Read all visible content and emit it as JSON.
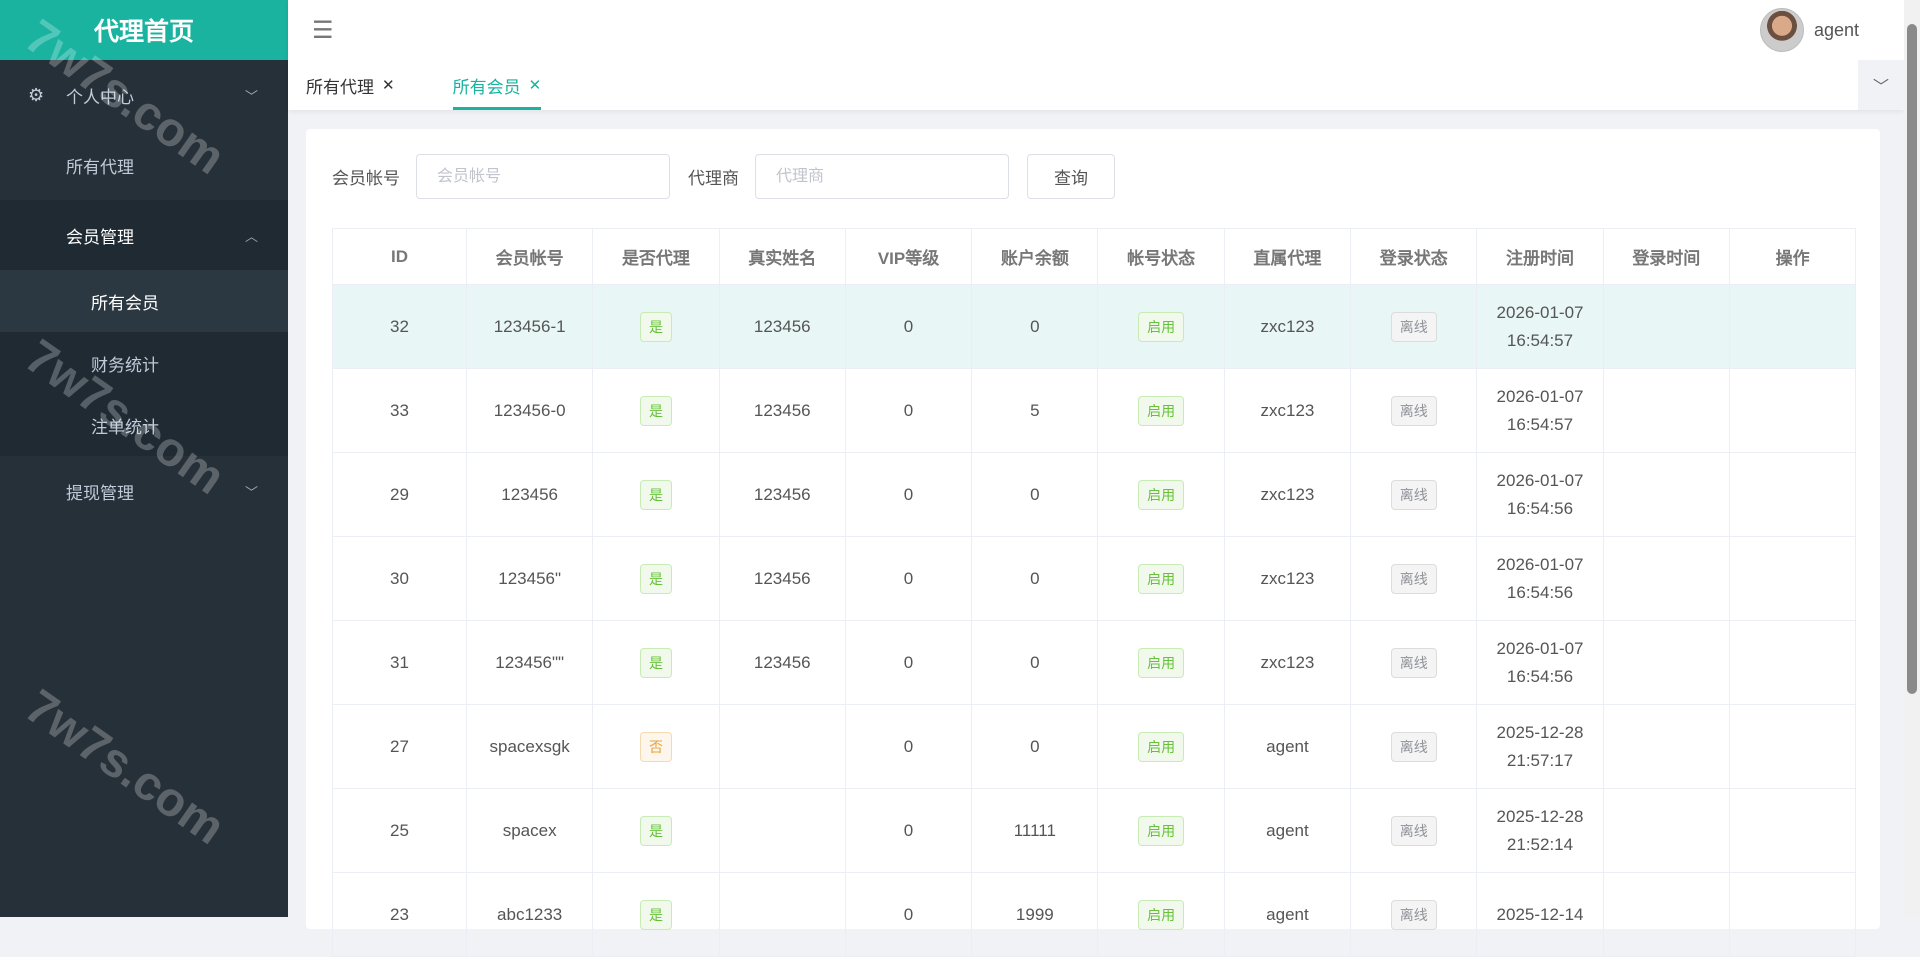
{
  "sidebar": {
    "logo": "代理首页",
    "items": [
      {
        "label": "个人中心",
        "icon": "gear-icon"
      },
      {
        "label": "所有代理"
      },
      {
        "label": "会员管理",
        "sub": [
          "所有会员",
          "财务统计",
          "注单统计"
        ]
      },
      {
        "label": "提现管理"
      }
    ]
  },
  "header": {
    "user": "agent"
  },
  "tabs": [
    {
      "label": "所有代理"
    },
    {
      "label": "所有会员",
      "active": true
    }
  ],
  "search": {
    "account_label": "会员帐号",
    "account_placeholder": "会员帐号",
    "agent_label": "代理商",
    "agent_placeholder": "代理商",
    "query": "查询"
  },
  "table": {
    "columns": [
      "ID",
      "会员帐号",
      "是否代理",
      "真实姓名",
      "VIP等级",
      "账户余额",
      "帐号状态",
      "直属代理",
      "登录状态",
      "注册时间",
      "登录时间",
      "操作"
    ],
    "rows": [
      [
        "32",
        "123456-1",
        "是",
        "123456",
        "0",
        "0",
        "启用",
        "zxc123",
        "离线",
        "2026-01-07",
        "16:54:57"
      ],
      [
        "33",
        "123456-0",
        "是",
        "123456",
        "0",
        "5",
        "启用",
        "zxc123",
        "离线",
        "2026-01-07",
        "16:54:57"
      ],
      [
        "29",
        "123456",
        "是",
        "123456",
        "0",
        "0",
        "启用",
        "zxc123",
        "离线",
        "2026-01-07",
        "16:54:56"
      ],
      [
        "30",
        "123456\"",
        "是",
        "123456",
        "0",
        "0",
        "启用",
        "zxc123",
        "离线",
        "2026-01-07",
        "16:54:56"
      ],
      [
        "31",
        "123456\"\"",
        "是",
        "123456",
        "0",
        "0",
        "启用",
        "zxc123",
        "离线",
        "2026-01-07",
        "16:54:56"
      ],
      [
        "27",
        "spacexsgk",
        "否",
        "",
        "0",
        "0",
        "启用",
        "agent",
        "离线",
        "2025-12-28",
        "21:57:17"
      ],
      [
        "25",
        "spacex",
        "是",
        "",
        "0",
        "11111",
        "启用",
        "agent",
        "离线",
        "2025-12-28",
        "21:52:14"
      ],
      [
        "23",
        "abc1233",
        "是",
        "",
        "0",
        "1999",
        "启用",
        "agent",
        "离线",
        "2025-12-14",
        ""
      ]
    ]
  },
  "watermark": "7w7s.com",
  "colors": {
    "accent": "#19b3a0",
    "sidebar": "#263039"
  }
}
